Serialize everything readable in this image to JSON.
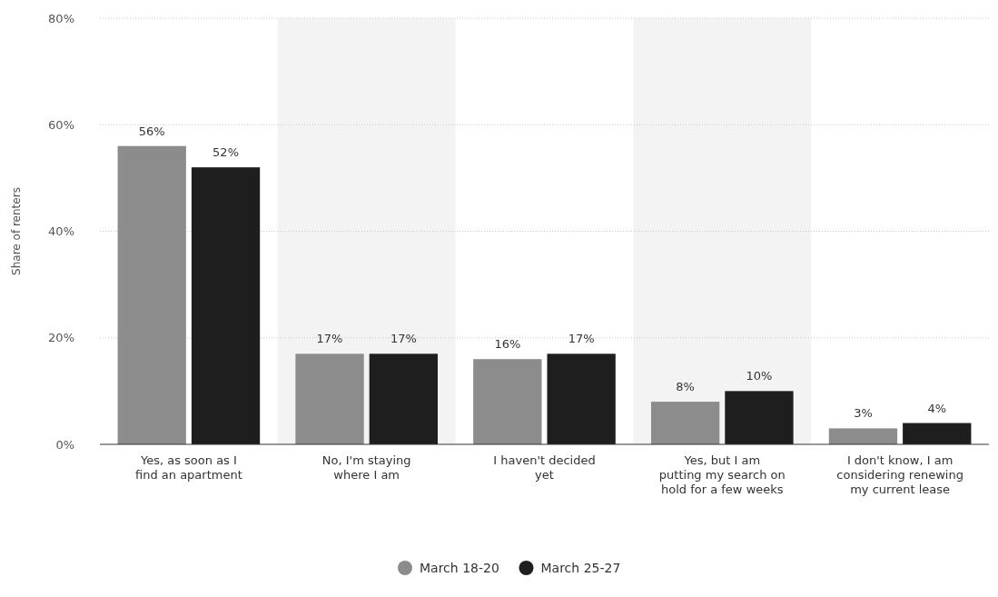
{
  "chart_data": {
    "type": "bar",
    "ylabel": "Share of renters",
    "categories": [
      "Yes, as soon as I find an apartment",
      "No, I'm staying where I am",
      "I haven't decided yet",
      "Yes, but I am putting my search on hold for a few weeks",
      "I don't know, I am considering renewing my current lease"
    ],
    "series": [
      {
        "name": "March 18-20",
        "color": "#8c8c8c",
        "values": [
          56,
          17,
          16,
          8,
          3
        ]
      },
      {
        "name": "March 25-27",
        "color": "#1e1e1e",
        "values": [
          52,
          17,
          17,
          10,
          4
        ]
      }
    ],
    "value_labels": [
      [
        "56%",
        "17%",
        "16%",
        "8%",
        "3%"
      ],
      [
        "52%",
        "17%",
        "17%",
        "10%",
        "4%"
      ]
    ],
    "ylim": [
      0,
      80
    ],
    "yticks": [
      {
        "value": 0,
        "label": "0%"
      },
      {
        "value": 20,
        "label": "20%"
      },
      {
        "value": 40,
        "label": "40%"
      },
      {
        "value": 60,
        "label": "60%"
      },
      {
        "value": 80,
        "label": "80%"
      }
    ],
    "bands": [
      {
        "axis": "x",
        "from": "No, I'm staying where I am",
        "to": "No, I'm staying where I am",
        "color": "#f3f3f3"
      },
      {
        "axis": "x",
        "from": "Yes, but I am putting my search on hold for a few weeks",
        "to": "Yes, but I am putting my search on hold for a few weeks",
        "color": "#f3f3f3"
      }
    ],
    "grid": "y",
    "legend": "bottom"
  }
}
